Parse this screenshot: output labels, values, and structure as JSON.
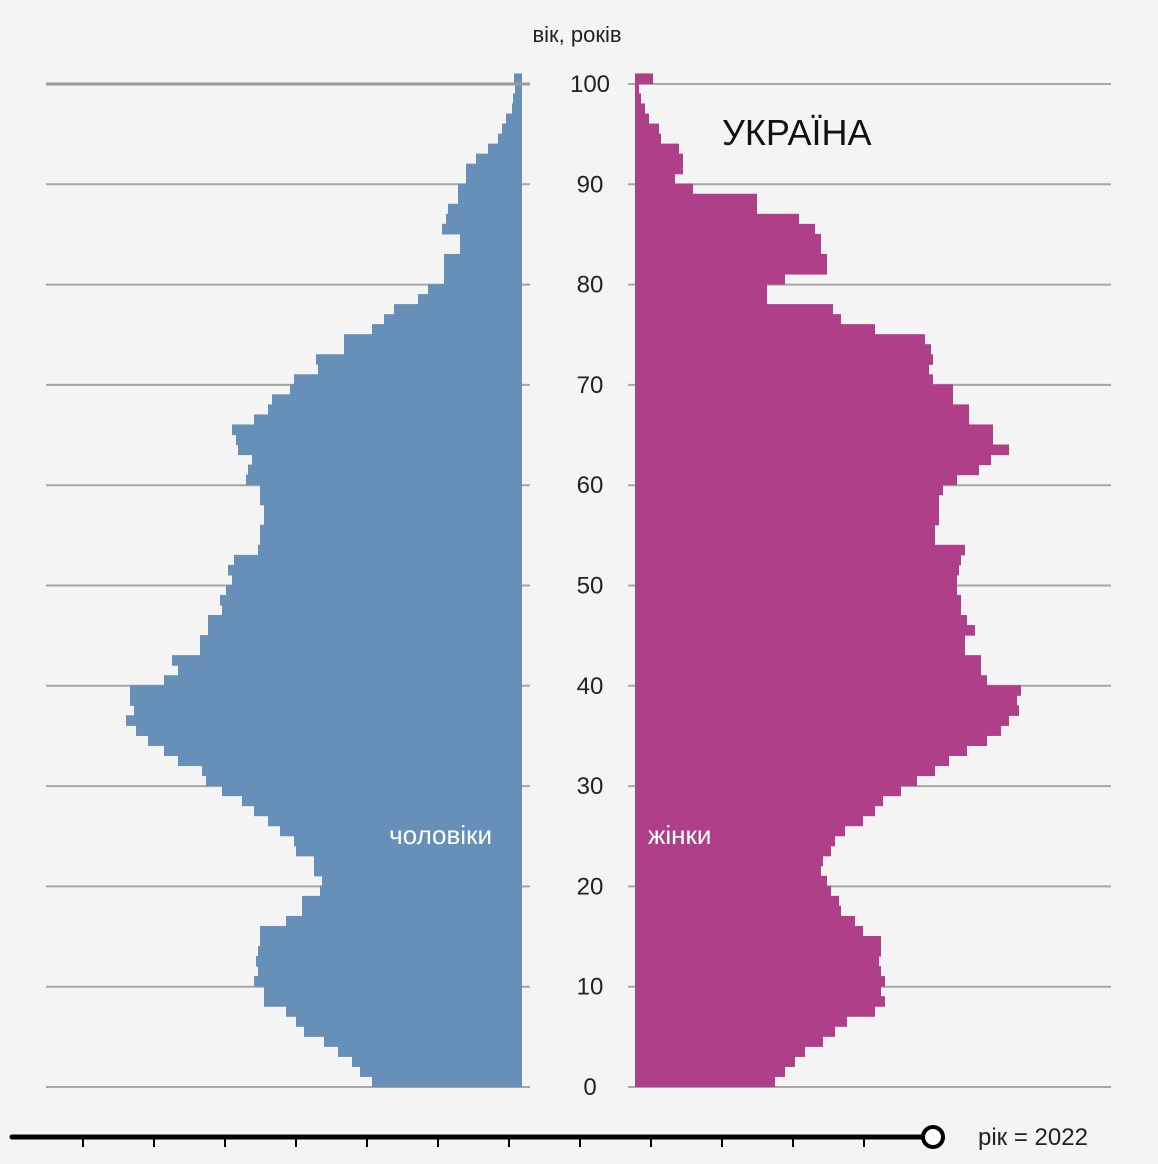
{
  "chart_data": {
    "type": "population-pyramid",
    "title": "УКРАЇНА",
    "ylabel": "вік, років",
    "age_range": [
      0,
      100
    ],
    "age_ticks": [
      0,
      10,
      20,
      30,
      40,
      50,
      60,
      70,
      80,
      90,
      100
    ],
    "series": [
      {
        "name": "чоловіки",
        "color": "#6690b7",
        "side": "left",
        "values": [
          150,
          162,
          170,
          184,
          198,
          218,
          226,
          236,
          258,
          258,
          268,
          264,
          266,
          264,
          262,
          262,
          236,
          220,
          220,
          202,
          200,
          208,
          208,
          226,
          228,
          242,
          254,
          268,
          280,
          300,
          316,
          320,
          344,
          358,
          374,
          386,
          396,
          388,
          392,
          392,
          358,
          344,
          350,
          322,
          322,
          314,
          314,
          300,
          302,
          296,
          290,
          294,
          288,
          264,
          262,
          262,
          258,
          258,
          262,
          262,
          276,
          274,
          270,
          284,
          286,
          290,
          268,
          254,
          250,
          232,
          228,
          204,
          206,
          178,
          178,
          150,
          138,
          128,
          104,
          94,
          78,
          78,
          78,
          62,
          62,
          80,
          76,
          74,
          64,
          64,
          56,
          56,
          46,
          34,
          24,
          20,
          16,
          10,
          9,
          7,
          8
        ]
      },
      {
        "name": "жінки",
        "color": "#b03f89",
        "side": "right",
        "values": [
          140,
          150,
          160,
          170,
          188,
          200,
          212,
          240,
          250,
          246,
          250,
          246,
          244,
          246,
          246,
          228,
          220,
          206,
          204,
          196,
          192,
          186,
          188,
          196,
          200,
          210,
          228,
          240,
          248,
          266,
          282,
          300,
          314,
          332,
          352,
          366,
          374,
          384,
          382,
          386,
          352,
          346,
          346,
          330,
          330,
          340,
          332,
          326,
          326,
          322,
          322,
          324,
          326,
          330,
          300,
          300,
          304,
          304,
          304,
          308,
          322,
          344,
          356,
          374,
          358,
          358,
          334,
          334,
          318,
          318,
          298,
          294,
          298,
          296,
          290,
          240,
          206,
          198,
          132,
          132,
          150,
          192,
          192,
          186,
          186,
          180,
          164,
          122,
          122,
          58,
          40,
          48,
          48,
          44,
          26,
          24,
          14,
          10,
          6,
          4,
          18
        ]
      }
    ],
    "slider": {
      "label": "рік = 2022",
      "value": 2022
    }
  }
}
